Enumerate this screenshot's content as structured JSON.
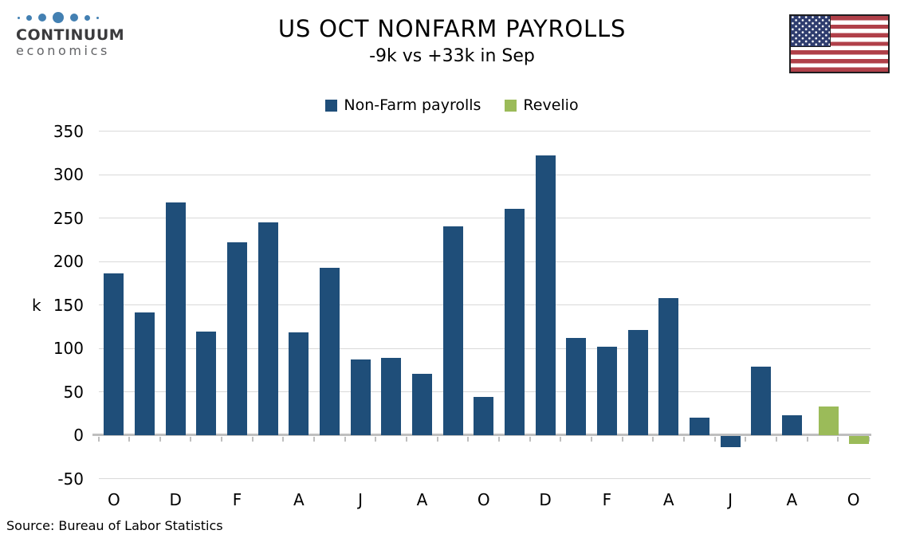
{
  "logo": {
    "line1": "CONTINUUM",
    "line2": "economics"
  },
  "flag_icon": "us-flag",
  "footer": {
    "source": "Source: Bureau of Labor Statistics"
  },
  "chart_data": {
    "type": "bar",
    "title": "US OCT NONFARM PAYROLLS",
    "subtitle": "-9k vs +33k in Sep",
    "ylabel": "k",
    "ylim": [
      -50,
      350
    ],
    "ytick_step": 50,
    "yticks": [
      350,
      300,
      250,
      200,
      150,
      100,
      50,
      0,
      -50
    ],
    "grid": true,
    "legend_position": "top",
    "n_bars": 25,
    "x_tick_every": 2,
    "x_ticks": [
      "O",
      "D",
      "F",
      "A",
      "J",
      "A",
      "O",
      "D",
      "F",
      "A",
      "J",
      "A",
      "O"
    ],
    "series": [
      {
        "name": "Non-Farm payrolls",
        "color": "#1F4E79",
        "values": [
          186,
          141,
          268,
          119,
          222,
          245,
          118,
          193,
          87,
          89,
          71,
          240,
          44,
          261,
          322,
          112,
          102,
          121,
          158,
          20,
          -13,
          79,
          23,
          null,
          null
        ]
      },
      {
        "name": "Revelio",
        "color": "#9BBB59",
        "values": [
          null,
          null,
          null,
          null,
          null,
          null,
          null,
          null,
          null,
          null,
          null,
          null,
          null,
          null,
          null,
          null,
          null,
          null,
          null,
          null,
          null,
          null,
          null,
          33,
          -9
        ]
      }
    ]
  }
}
